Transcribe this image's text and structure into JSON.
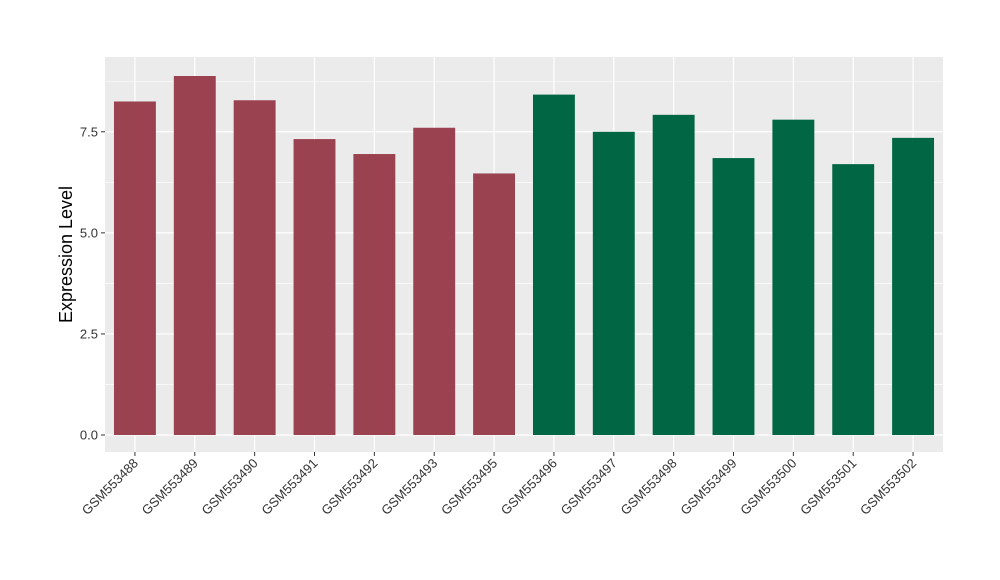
{
  "chart_data": {
    "type": "bar",
    "title": "",
    "xlabel": "",
    "ylabel": "Expression Level",
    "ylim": [
      -0.42,
      9.35
    ],
    "yticks": [
      0.0,
      2.5,
      5.0,
      7.5
    ],
    "ytick_labels": [
      "0.0",
      "2.5",
      "5.0",
      "7.5"
    ],
    "grid": true,
    "legend": "none",
    "categories": [
      "GSM553488",
      "GSM553489",
      "GSM553490",
      "GSM553491",
      "GSM553492",
      "GSM553493",
      "GSM553495",
      "GSM553496",
      "GSM553497",
      "GSM553498",
      "GSM553499",
      "GSM553500",
      "GSM553501",
      "GSM553502"
    ],
    "values": [
      8.25,
      8.88,
      8.28,
      7.32,
      6.95,
      7.6,
      6.47,
      8.42,
      7.5,
      7.92,
      6.85,
      7.8,
      6.7,
      7.35
    ],
    "bar_colors": [
      "#9b4250",
      "#9b4250",
      "#9b4250",
      "#9b4250",
      "#9b4250",
      "#9b4250",
      "#9b4250",
      "#006644",
      "#006644",
      "#006644",
      "#006644",
      "#006644",
      "#006644",
      "#006644"
    ],
    "panel_background": "#ebebeb",
    "grid_color": "#ffffff"
  }
}
